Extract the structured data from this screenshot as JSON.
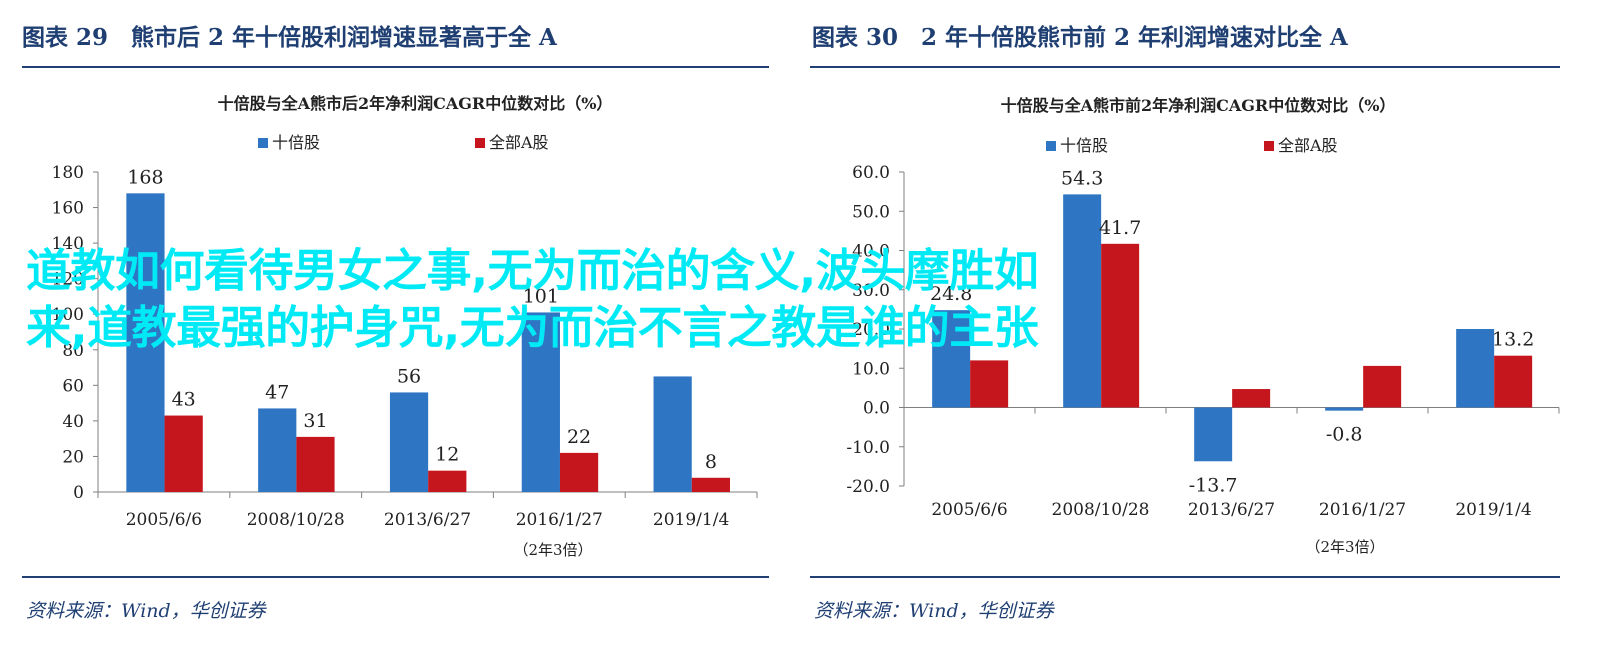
{
  "colors": {
    "series1": "#2e75c3",
    "series2": "#c4161c",
    "accent_title": "#1f3f73",
    "rule": "#223f74",
    "overlay_text": "#00eaf6"
  },
  "left": {
    "figure_title": "图表 29　熊市后 2 年十倍股利润增速显著高于全 A",
    "source": "资料来源：Wind，华创证券"
  },
  "right": {
    "figure_title": "图表 30　2 年十倍股熊市前 2 年利润增速对比全 A",
    "source": "资料来源：Wind，华创证券"
  },
  "overlay": {
    "line1": "道教如何看待男女之事,无为而治的含义,波头摩胜如",
    "line2": "来,道教最强的护身咒,无为而治不言之教是谁的主张"
  },
  "chart_data": [
    {
      "type": "bar",
      "title": "十倍股与全A熊市后2年净利润CAGR中位数对比（%）",
      "xlabel": "（2年3倍）",
      "ylabel": "",
      "categories": [
        "2005/6/6",
        "2008/10/28",
        "2013/6/27",
        "2016/1/27",
        "2019/1/4"
      ],
      "series": [
        {
          "name": "十倍股",
          "values": [
            168,
            47,
            56,
            101,
            65
          ]
        },
        {
          "name": "全部A股",
          "values": [
            43,
            31,
            12,
            22,
            8
          ]
        }
      ],
      "data_labels": [
        [
          "168",
          "47",
          "56",
          "101",
          ""
        ],
        [
          "43",
          "31",
          "12",
          "22",
          "8"
        ]
      ],
      "yticks": [
        0,
        20,
        40,
        60,
        80,
        100,
        120,
        140,
        160,
        180
      ],
      "ytick_labels": [
        "0",
        "20",
        "40",
        "60",
        "80",
        "100",
        "120",
        "140",
        "160",
        "180"
      ],
      "ylim": [
        0,
        180
      ],
      "grid": false,
      "legend": "top-center"
    },
    {
      "type": "bar",
      "title": "十倍股与全A熊市前2年净利润CAGR中位数对比（%）",
      "xlabel": "（2年3倍）",
      "ylabel": "",
      "categories": [
        "2005/6/6",
        "2008/10/28",
        "2013/6/27",
        "2016/1/27",
        "2019/1/4"
      ],
      "series": [
        {
          "name": "十倍股",
          "values": [
            24.8,
            54.3,
            -13.7,
            -0.8,
            20.0
          ]
        },
        {
          "name": "全部A股",
          "values": [
            12.0,
            41.7,
            4.7,
            10.6,
            13.2
          ]
        }
      ],
      "data_labels": [
        [
          "24.8",
          "54.3",
          "-13.7",
          "-0.8",
          ""
        ],
        [
          "",
          "41.7",
          "",
          "",
          "13.2"
        ]
      ],
      "yticks": [
        -20,
        -10,
        0,
        10,
        20,
        30,
        40,
        50,
        60
      ],
      "ytick_labels": [
        "-20.0",
        "-10.0",
        "0.0",
        "10.0",
        "20.0",
        "30.0",
        "40.0",
        "50.0",
        "60.0"
      ],
      "ylim": [
        -20,
        60
      ],
      "grid": false,
      "legend": "top-center"
    }
  ]
}
